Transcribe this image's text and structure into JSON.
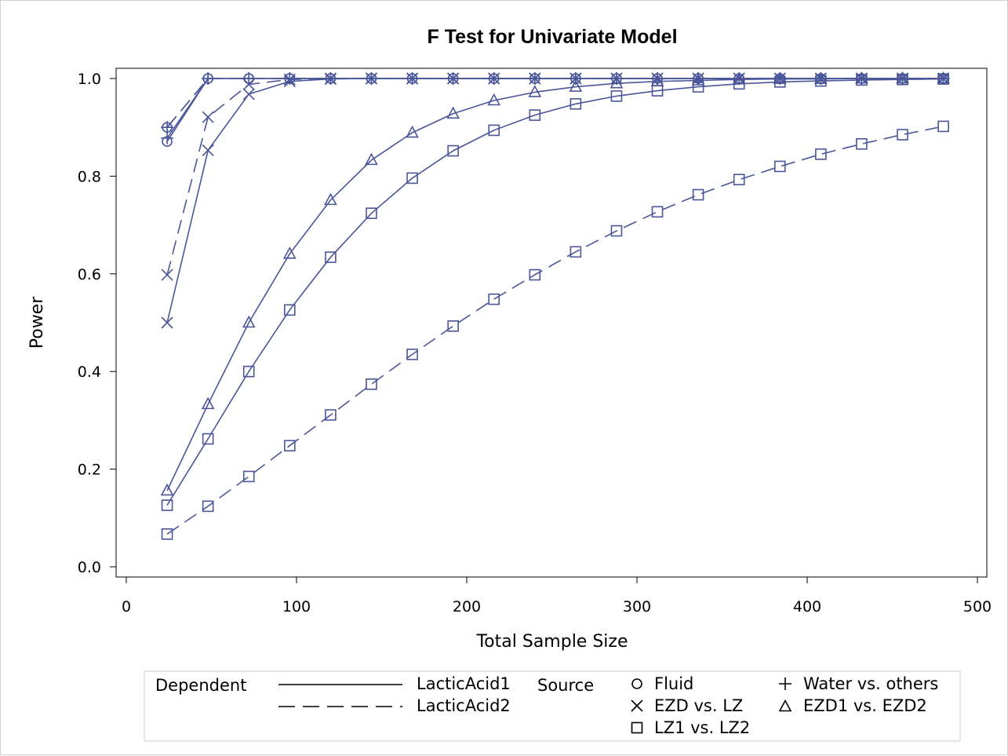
{
  "chart_data": {
    "type": "line",
    "title": "F Test for Univariate Model",
    "xlabel": "Total Sample Size",
    "ylabel": "Power",
    "xlim": [
      0,
      500
    ],
    "ylim": [
      0,
      1
    ],
    "xticks": [
      0,
      100,
      200,
      300,
      400,
      500
    ],
    "yticks": [
      0.0,
      0.2,
      0.4,
      0.6,
      0.8,
      1.0
    ],
    "xtick_labels": [
      "0",
      "100",
      "200",
      "300",
      "400",
      "500"
    ],
    "ytick_labels": [
      "0.0",
      "0.2",
      "0.4",
      "0.6",
      "0.8",
      "1.0"
    ],
    "grid": false,
    "line_color": "#4a5699",
    "x": [
      24,
      48,
      72,
      96,
      120,
      144,
      168,
      192,
      216,
      240,
      264,
      288,
      312,
      336,
      360,
      384,
      408,
      432,
      456,
      480
    ],
    "series": [
      {
        "dependent": "LacticAcid1",
        "source": "Fluid",
        "marker": "circle",
        "values": [
          0.871,
          1.0,
          1.0,
          1.0,
          1.0,
          1.0,
          1.0,
          1.0,
          1.0,
          1.0,
          1.0,
          1.0,
          1.0,
          1.0,
          1.0,
          1.0,
          1.0,
          1.0,
          1.0,
          1.0
        ]
      },
      {
        "dependent": "LacticAcid2",
        "source": "Fluid",
        "marker": "circle",
        "values": [
          0.9,
          1.0,
          1.0,
          1.0,
          1.0,
          1.0,
          1.0,
          1.0,
          1.0,
          1.0,
          1.0,
          1.0,
          1.0,
          1.0,
          1.0,
          1.0,
          1.0,
          1.0,
          1.0,
          1.0
        ]
      },
      {
        "dependent": "LacticAcid1",
        "source": "Water vs. others",
        "marker": "plus",
        "values": [
          0.878,
          1.0,
          1.0,
          1.0,
          1.0,
          1.0,
          1.0,
          1.0,
          1.0,
          1.0,
          1.0,
          1.0,
          1.0,
          1.0,
          1.0,
          1.0,
          1.0,
          1.0,
          1.0,
          1.0
        ]
      },
      {
        "dependent": "LacticAcid2",
        "source": "Water vs. others",
        "marker": "plus",
        "values": [
          0.9,
          1.0,
          1.0,
          1.0,
          1.0,
          1.0,
          1.0,
          1.0,
          1.0,
          1.0,
          1.0,
          1.0,
          1.0,
          1.0,
          1.0,
          1.0,
          1.0,
          1.0,
          1.0,
          1.0
        ]
      },
      {
        "dependent": "LacticAcid1",
        "source": "EZD vs. LZ",
        "marker": "x",
        "values": [
          0.5,
          0.853,
          0.968,
          0.994,
          0.999,
          1.0,
          1.0,
          1.0,
          1.0,
          1.0,
          1.0,
          1.0,
          1.0,
          1.0,
          1.0,
          1.0,
          1.0,
          1.0,
          1.0,
          1.0
        ]
      },
      {
        "dependent": "LacticAcid2",
        "source": "EZD vs. LZ",
        "marker": "x",
        "values": [
          0.598,
          0.921,
          0.988,
          0.998,
          1.0,
          1.0,
          1.0,
          1.0,
          1.0,
          1.0,
          1.0,
          1.0,
          1.0,
          1.0,
          1.0,
          1.0,
          1.0,
          1.0,
          1.0,
          1.0
        ]
      },
      {
        "dependent": "LacticAcid1",
        "source": "EZD1 vs. EZD2",
        "marker": "triangle",
        "values": [
          0.156,
          0.333,
          0.5,
          0.641,
          0.751,
          0.833,
          0.889,
          0.928,
          0.955,
          0.972,
          0.983,
          0.99,
          0.994,
          0.996,
          0.998,
          0.999,
          0.999,
          1.0,
          1.0,
          1.0
        ]
      },
      {
        "dependent": "LacticAcid1",
        "source": "LZ1 vs. LZ2",
        "marker": "square",
        "values": [
          0.126,
          0.262,
          0.4,
          0.526,
          0.634,
          0.724,
          0.796,
          0.852,
          0.894,
          0.925,
          0.948,
          0.964,
          0.975,
          0.983,
          0.989,
          0.993,
          0.995,
          0.997,
          0.998,
          0.999
        ]
      },
      {
        "dependent": "LacticAcid2",
        "source": "LZ1 vs. LZ2",
        "marker": "square",
        "values": [
          0.067,
          0.124,
          0.185,
          0.248,
          0.311,
          0.374,
          0.435,
          0.493,
          0.548,
          0.598,
          0.645,
          0.688,
          0.727,
          0.762,
          0.793,
          0.82,
          0.845,
          0.866,
          0.885,
          0.902
        ]
      }
    ],
    "legend": {
      "placement": "bottom",
      "dependent_title": "Dependent",
      "source_title": "Source",
      "dependent_entries": [
        {
          "label": "LacticAcid1",
          "dash": "solid"
        },
        {
          "label": "LacticAcid2",
          "dash": "dashed"
        }
      ],
      "source_entries": [
        {
          "label": "Fluid",
          "marker": "circle"
        },
        {
          "label": "Water vs. others",
          "marker": "plus"
        },
        {
          "label": "EZD vs. LZ",
          "marker": "x"
        },
        {
          "label": "EZD1 vs. EZD2",
          "marker": "triangle"
        },
        {
          "label": "LZ1 vs. LZ2",
          "marker": "square"
        }
      ]
    }
  }
}
